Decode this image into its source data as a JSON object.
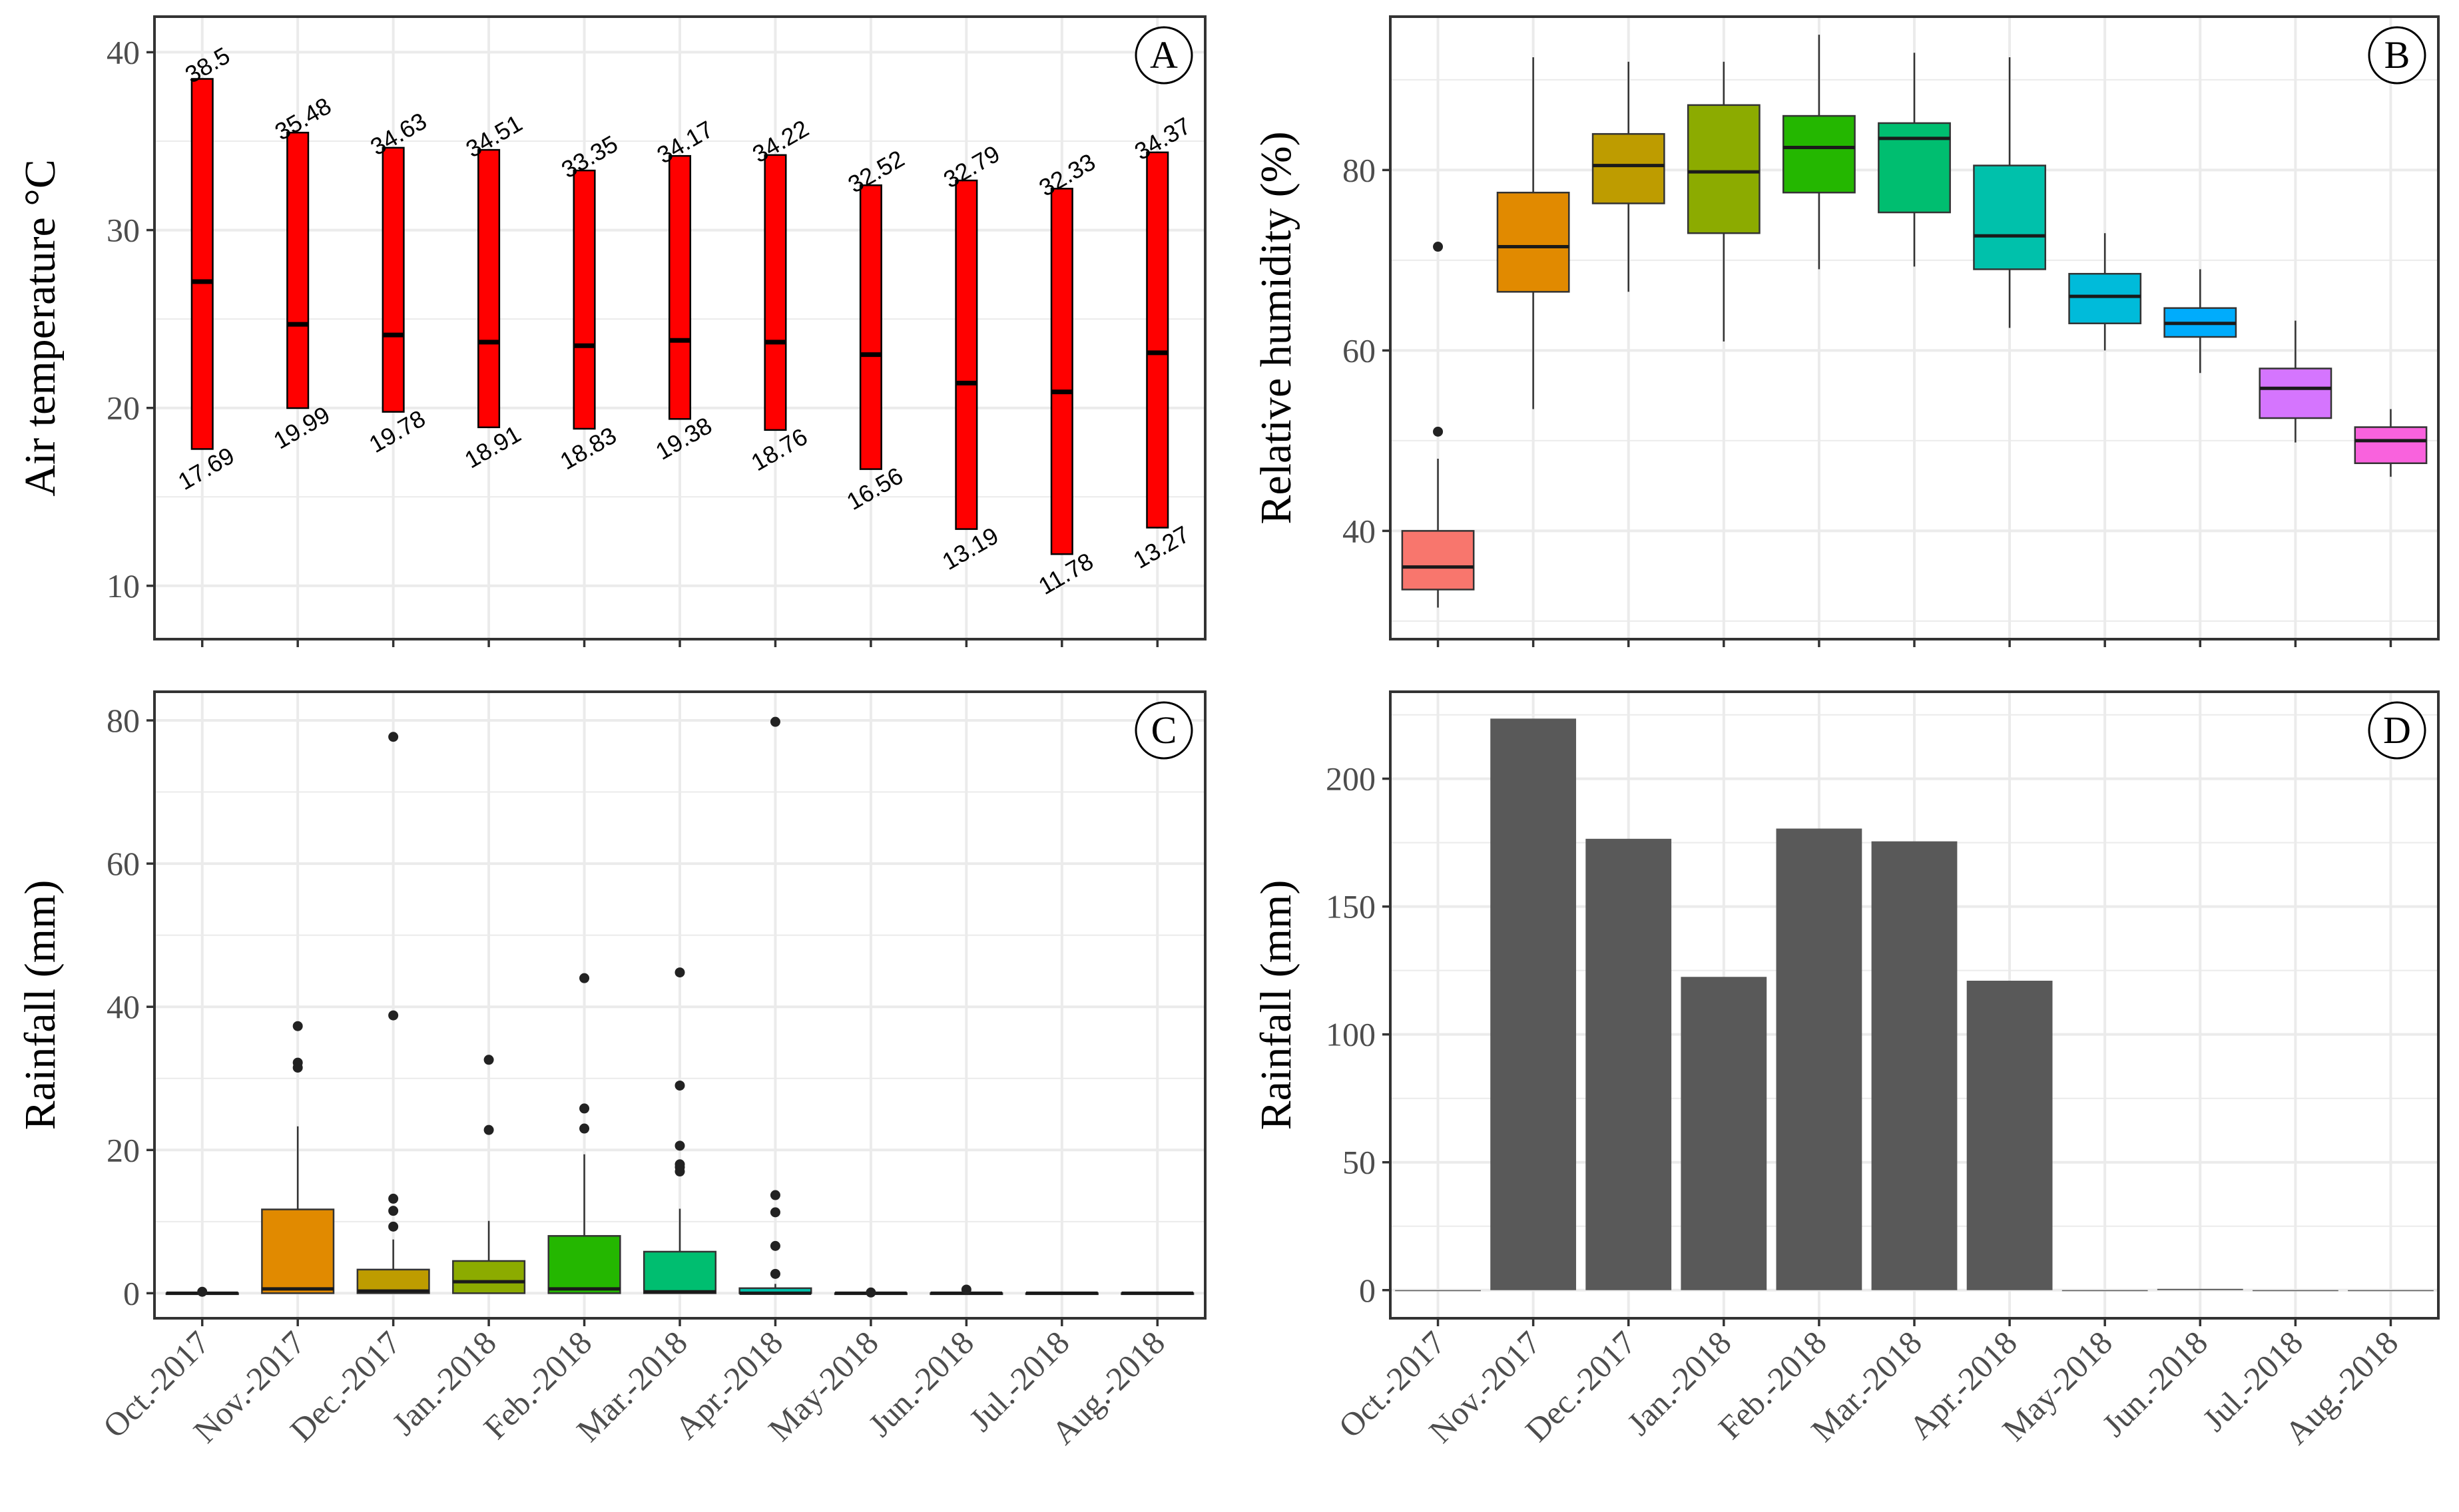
{
  "months": [
    "Oct.-2017",
    "Nov.-2017",
    "Dec.-2017",
    "Jan.-2018",
    "Feb.-2018",
    "Mar.-2018",
    "Apr.-2018",
    "May-2018",
    "Jun.-2018",
    "Jul.-2018",
    "Aug.-2018"
  ],
  "colors": {
    "boxes": [
      "#F8766D",
      "#E18A00",
      "#BE9C00",
      "#8CAB00",
      "#24B700",
      "#00BE70",
      "#00C1AB",
      "#00BBDA",
      "#00ACFC",
      "#8B93FF",
      "#D575FE",
      "#F962DD",
      "#FF65AC"
    ],
    "range_bar": "#FF0000",
    "bar": "#595959",
    "grid": "#EBEBEB",
    "frame": "#333333"
  },
  "chart_data": [
    {
      "panel": "A",
      "type": "range",
      "title": "",
      "xlabel": "",
      "ylabel": "Air temperature °C",
      "ylim": [
        7,
        42
      ],
      "yticks": [
        10,
        20,
        30,
        40
      ],
      "categories": [
        "Oct.-2017",
        "Nov.-2017",
        "Dec.-2017",
        "Jan.-2018",
        "Feb.-2018",
        "Mar.-2018",
        "Apr.-2018",
        "May-2018",
        "Jun.-2018",
        "Jul.-2018",
        "Aug.-2018"
      ],
      "max": [
        38.5,
        35.48,
        34.63,
        34.51,
        33.35,
        34.17,
        34.22,
        32.52,
        32.79,
        32.33,
        34.37
      ],
      "min": [
        17.69,
        19.99,
        19.78,
        18.91,
        18.83,
        19.38,
        18.76,
        16.56,
        13.19,
        11.78,
        13.27
      ],
      "mean": [
        27.1,
        24.7,
        24.1,
        23.7,
        23.5,
        23.8,
        23.7,
        23.0,
        21.4,
        20.9,
        23.1
      ],
      "max_labels": [
        "38.5",
        "35.48",
        "34.63",
        "34.51",
        "33.35",
        "34.17",
        "34.22",
        "32.52",
        "32.79",
        "32.33",
        "34.37"
      ],
      "min_labels": [
        "17.69",
        "19.99",
        "19.78",
        "18.91",
        "18.83",
        "19.38",
        "18.76",
        "16.56",
        "13.19",
        "11.78",
        "13.27"
      ]
    },
    {
      "panel": "B",
      "type": "box",
      "title": "",
      "xlabel": "",
      "ylabel": "Relative humidity (%)",
      "ylim": [
        28,
        97
      ],
      "yticks": [
        40,
        60,
        80
      ],
      "categories": [
        "Oct.-2017",
        "Nov.-2017",
        "Dec.-2017",
        "Jan.-2018",
        "Feb.-2018",
        "Mar.-2018",
        "Apr.-2018",
        "May-2018",
        "Jun.-2018",
        "Jul.-2018",
        "Aug.-2018"
      ],
      "boxes": [
        {
          "min": 31.5,
          "q1": 33.5,
          "median": 36,
          "q3": 40,
          "max": 48,
          "outliers": [
            51,
            71.5
          ]
        },
        {
          "min": 53.5,
          "q1": 66.5,
          "median": 71.5,
          "q3": 77.5,
          "max": 92.5,
          "outliers": []
        },
        {
          "min": 66.5,
          "q1": 76.3,
          "median": 80.5,
          "q3": 84,
          "max": 92,
          "outliers": []
        },
        {
          "min": 61,
          "q1": 73,
          "median": 79.8,
          "q3": 87.2,
          "max": 92,
          "outliers": []
        },
        {
          "min": 69,
          "q1": 77.5,
          "median": 82.5,
          "q3": 86,
          "max": 95,
          "outliers": []
        },
        {
          "min": 69.3,
          "q1": 75.3,
          "median": 83.5,
          "q3": 85.2,
          "max": 93,
          "outliers": []
        },
        {
          "min": 62.5,
          "q1": 69,
          "median": 72.7,
          "q3": 80.5,
          "max": 92.5,
          "outliers": []
        },
        {
          "min": 60,
          "q1": 63,
          "median": 66,
          "q3": 68.5,
          "max": 73,
          "outliers": []
        },
        {
          "min": 57.5,
          "q1": 61.5,
          "median": 63,
          "q3": 64.7,
          "max": 69,
          "outliers": []
        },
        {
          "min": 49.8,
          "q1": 52.5,
          "median": 55.8,
          "q3": 58,
          "max": 63.3,
          "outliers": []
        },
        {
          "min": 46,
          "q1": 47.5,
          "median": 50,
          "q3": 51.5,
          "max": 53.5,
          "outliers": []
        }
      ],
      "fill_index": [
        0,
        1,
        2,
        3,
        4,
        5,
        6,
        7,
        8,
        10,
        11
      ]
    },
    {
      "panel": "C",
      "type": "box",
      "title": "",
      "xlabel": "",
      "ylabel": "Rainfall (mm)",
      "ylim": [
        -3.5,
        84
      ],
      "yticks": [
        0,
        20,
        40,
        60,
        80
      ],
      "categories": [
        "Oct.-2017",
        "Nov.-2017",
        "Dec.-2017",
        "Jan.-2018",
        "Feb.-2018",
        "Mar.-2018",
        "Apr.-2018",
        "May-2018",
        "Jun.-2018",
        "Jul.-2018",
        "Aug.-2018"
      ],
      "boxes": [
        {
          "min": 0,
          "q1": 0,
          "median": 0,
          "q3": 0,
          "max": 0,
          "outliers": [
            0.2
          ]
        },
        {
          "min": 0,
          "q1": 0,
          "median": 0.6,
          "q3": 11.7,
          "max": 23.3,
          "outliers": [
            31.5,
            32.2,
            37.3
          ]
        },
        {
          "min": 0,
          "q1": 0,
          "median": 0.3,
          "q3": 3.3,
          "max": 7.5,
          "outliers": [
            9.3,
            11.5,
            13.2,
            38.8,
            77.7
          ]
        },
        {
          "min": 0,
          "q1": 0,
          "median": 1.6,
          "q3": 4.5,
          "max": 10.1,
          "outliers": [
            22.8,
            32.6
          ]
        },
        {
          "min": 0,
          "q1": 0,
          "median": 0.6,
          "q3": 8,
          "max": 19.4,
          "outliers": [
            23,
            25.8,
            44
          ]
        },
        {
          "min": 0,
          "q1": 0,
          "median": 0.2,
          "q3": 5.8,
          "max": 11.8,
          "outliers": [
            17,
            17.6,
            18,
            20.6,
            29,
            44.8
          ]
        },
        {
          "min": 0,
          "q1": 0,
          "median": 0,
          "q3": 0.7,
          "max": 1.3,
          "outliers": [
            2.7,
            6.6,
            11.3,
            13.7,
            79.8
          ]
        },
        {
          "min": 0,
          "q1": 0,
          "median": 0,
          "q3": 0,
          "max": 0,
          "outliers": [
            0.1
          ]
        },
        {
          "min": 0,
          "q1": 0,
          "median": 0,
          "q3": 0,
          "max": 0,
          "outliers": [
            0.5
          ]
        },
        {
          "min": 0,
          "q1": 0,
          "median": 0,
          "q3": 0,
          "max": 0,
          "outliers": []
        },
        {
          "min": 0,
          "q1": 0,
          "median": 0,
          "q3": 0,
          "max": 0,
          "outliers": []
        }
      ],
      "fill_index": [
        0,
        1,
        2,
        3,
        4,
        5,
        6,
        7,
        8,
        10,
        11
      ]
    },
    {
      "panel": "D",
      "type": "bar",
      "title": "",
      "xlabel": "",
      "ylabel": "Rainfall (mm)",
      "ylim": [
        -11,
        234
      ],
      "yticks": [
        0,
        50,
        100,
        150,
        200
      ],
      "categories": [
        "Oct.-2017",
        "Nov.-2017",
        "Dec.-2017",
        "Jan.-2018",
        "Feb.-2018",
        "Mar.-2018",
        "Apr.-2018",
        "May-2018",
        "Jun.-2018",
        "Jul.-2018",
        "Aug.-2018"
      ],
      "values": [
        0,
        223.5,
        176.5,
        122.5,
        180.5,
        175.5,
        121,
        0,
        0.5,
        0,
        0
      ]
    }
  ]
}
